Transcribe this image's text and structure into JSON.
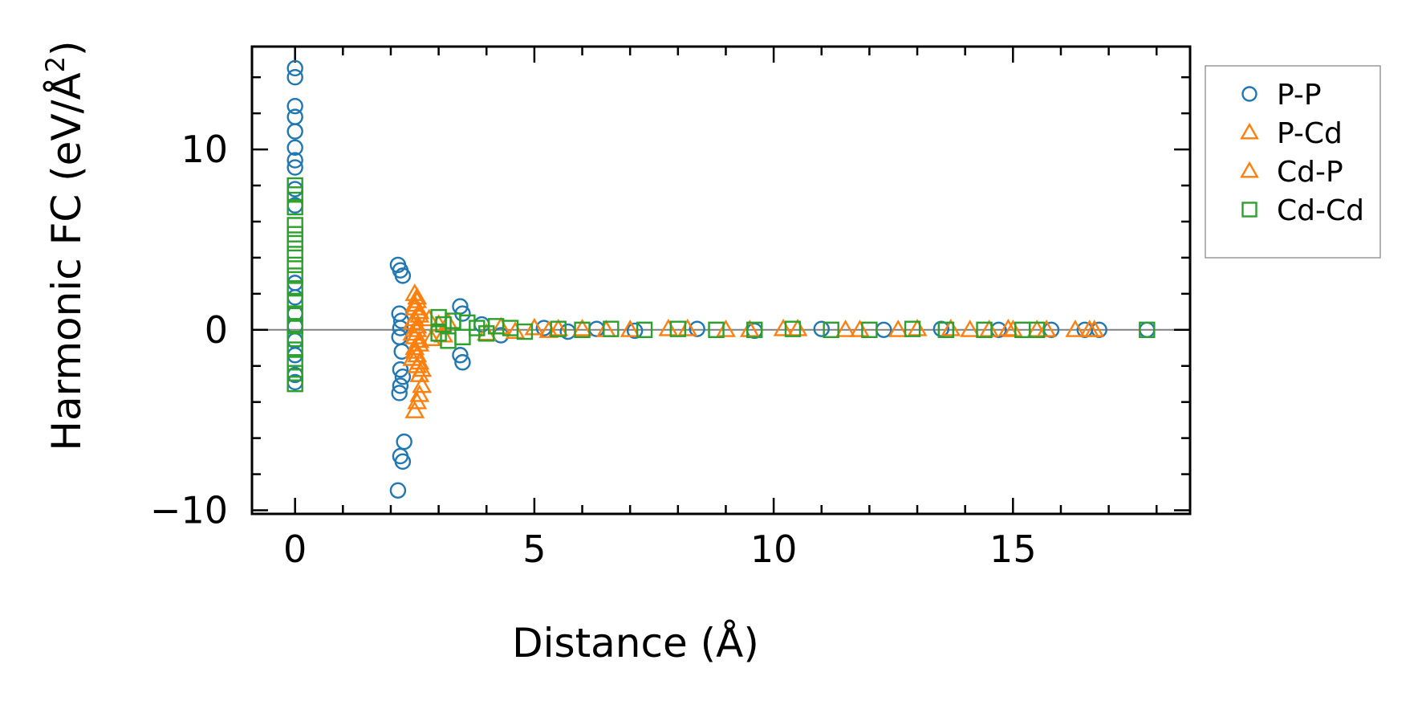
{
  "chart_data": {
    "type": "scatter",
    "title": "",
    "xlabel": "Distance (Å)",
    "ylabel_main": "Harmonic FC (eV/Å",
    "ylabel_sup": "2",
    "ylabel_close": ")",
    "xlim": [
      -0.9,
      18.7
    ],
    "ylim": [
      -10.2,
      15.7
    ],
    "x_ticks": [
      0,
      5,
      10,
      15
    ],
    "x_tick_labels": [
      "0",
      "5",
      "10",
      "15"
    ],
    "y_ticks": [
      -10,
      0,
      10
    ],
    "y_tick_labels": [
      "−10",
      "0",
      "10"
    ],
    "x_minor_step": 1,
    "y_minor_step": 2,
    "zero_line": 0,
    "grid": false,
    "legend_position": "outside-right-top",
    "series": [
      {
        "name": "P-P",
        "marker": "circle",
        "color": "#1f77b4",
        "points": [
          [
            0,
            14.5
          ],
          [
            0,
            14.0
          ],
          [
            0,
            12.4
          ],
          [
            0,
            11.8
          ],
          [
            0,
            11.0
          ],
          [
            0,
            10.1
          ],
          [
            0,
            9.4
          ],
          [
            0,
            9.0
          ],
          [
            0,
            7.8
          ],
          [
            0,
            6.9
          ],
          [
            0,
            2.6
          ],
          [
            0,
            1.8
          ],
          [
            0,
            0.9
          ],
          [
            0,
            0.2
          ],
          [
            0,
            -0.6
          ],
          [
            0,
            -1.4
          ],
          [
            0,
            -2.5
          ],
          [
            0,
            -2.9
          ],
          [
            2.15,
            3.6
          ],
          [
            2.2,
            3.3
          ],
          [
            2.25,
            3.0
          ],
          [
            2.18,
            0.9
          ],
          [
            2.22,
            0.5
          ],
          [
            2.2,
            0.1
          ],
          [
            2.18,
            -0.4
          ],
          [
            2.23,
            -1.2
          ],
          [
            2.2,
            -2.2
          ],
          [
            2.25,
            -2.6
          ],
          [
            2.2,
            -3.1
          ],
          [
            2.18,
            -3.5
          ],
          [
            2.28,
            -6.2
          ],
          [
            2.2,
            -7.0
          ],
          [
            2.25,
            -7.3
          ],
          [
            2.15,
            -8.9
          ],
          [
            3.45,
            1.3
          ],
          [
            3.5,
            0.9
          ],
          [
            3.45,
            -1.4
          ],
          [
            3.5,
            -1.8
          ],
          [
            3.9,
            0.3
          ],
          [
            4.3,
            -0.3
          ],
          [
            5.2,
            0.1
          ],
          [
            5.7,
            -0.1
          ],
          [
            6.3,
            0.05
          ],
          [
            7.1,
            -0.05
          ],
          [
            8.4,
            0.05
          ],
          [
            9.6,
            -0.05
          ],
          [
            11.0,
            0.05
          ],
          [
            12.3,
            0.0
          ],
          [
            13.5,
            0.05
          ],
          [
            14.7,
            0.0
          ],
          [
            15.8,
            0.0
          ],
          [
            16.5,
            0.0
          ],
          [
            16.8,
            0.0
          ],
          [
            17.8,
            0.0
          ]
        ]
      },
      {
        "name": "P-Cd",
        "marker": "triangle",
        "color": "#ff7f0e",
        "points": [
          [
            2.5,
            2.0
          ],
          [
            2.55,
            1.6
          ],
          [
            2.5,
            1.2
          ],
          [
            2.6,
            0.8
          ],
          [
            2.45,
            0.4
          ],
          [
            2.55,
            0.0
          ],
          [
            2.5,
            -0.4
          ],
          [
            2.6,
            -0.8
          ],
          [
            2.5,
            -1.2
          ],
          [
            2.45,
            -1.6
          ],
          [
            2.55,
            -2.0
          ],
          [
            2.6,
            -2.5
          ],
          [
            2.65,
            -3.1
          ],
          [
            2.6,
            -3.6
          ],
          [
            2.55,
            -4.0
          ],
          [
            2.5,
            -4.5
          ],
          [
            2.8,
            0.6
          ],
          [
            2.85,
            -0.5
          ],
          [
            3.0,
            0.3
          ],
          [
            3.1,
            -0.3
          ],
          [
            4.3,
            0.15
          ],
          [
            4.6,
            -0.1
          ],
          [
            5.0,
            0.1
          ],
          [
            5.3,
            -0.05
          ],
          [
            6.0,
            0.05
          ],
          [
            7.0,
            0.0
          ],
          [
            8.2,
            0.05
          ],
          [
            9.5,
            0.0
          ],
          [
            10.5,
            0.05
          ],
          [
            11.5,
            0.0
          ],
          [
            12.6,
            0.0
          ],
          [
            13.7,
            0.05
          ],
          [
            14.5,
            0.0
          ],
          [
            15.0,
            0.0
          ],
          [
            15.5,
            0.0
          ],
          [
            16.3,
            0.0
          ],
          [
            16.7,
            0.0
          ]
        ]
      },
      {
        "name": "Cd-P",
        "marker": "triangle",
        "color": "#ff7f0e",
        "points": [
          [
            2.55,
            1.8
          ],
          [
            2.5,
            1.4
          ],
          [
            2.6,
            1.0
          ],
          [
            2.5,
            0.6
          ],
          [
            2.55,
            0.2
          ],
          [
            2.45,
            -0.2
          ],
          [
            2.6,
            -0.6
          ],
          [
            2.5,
            -1.0
          ],
          [
            2.55,
            -1.4
          ],
          [
            2.6,
            -1.8
          ],
          [
            2.65,
            -2.2
          ],
          [
            3.2,
            0.4
          ],
          [
            4.0,
            -0.2
          ],
          [
            5.5,
            0.05
          ],
          [
            6.5,
            0.0
          ],
          [
            7.8,
            0.05
          ],
          [
            9.0,
            0.0
          ],
          [
            10.2,
            0.05
          ],
          [
            11.8,
            0.0
          ],
          [
            13.0,
            0.05
          ],
          [
            14.1,
            0.0
          ],
          [
            14.9,
            0.05
          ],
          [
            15.7,
            0.0
          ],
          [
            16.6,
            0.0
          ]
        ]
      },
      {
        "name": "Cd-Cd",
        "marker": "square",
        "color": "#2ca02c",
        "points": [
          [
            0,
            8.0
          ],
          [
            0,
            7.5
          ],
          [
            0,
            6.8
          ],
          [
            0,
            5.8
          ],
          [
            0,
            5.3
          ],
          [
            0,
            4.8
          ],
          [
            0,
            4.2
          ],
          [
            0,
            3.6
          ],
          [
            0,
            3.0
          ],
          [
            0,
            2.3
          ],
          [
            0,
            1.6
          ],
          [
            0,
            0.9
          ],
          [
            0,
            0.2
          ],
          [
            0,
            -0.5
          ],
          [
            0,
            -1.1
          ],
          [
            0,
            -1.8
          ],
          [
            0,
            -2.4
          ],
          [
            0,
            -3.0
          ],
          [
            3.0,
            0.7
          ],
          [
            3.1,
            0.3
          ],
          [
            3.0,
            -0.2
          ],
          [
            3.2,
            -0.6
          ],
          [
            3.3,
            0.5
          ],
          [
            3.5,
            -0.4
          ],
          [
            3.6,
            0.4
          ],
          [
            3.8,
            0.1
          ],
          [
            4.0,
            -0.2
          ],
          [
            4.2,
            0.2
          ],
          [
            4.5,
            0.1
          ],
          [
            4.8,
            -0.1
          ],
          [
            5.5,
            0.05
          ],
          [
            6.0,
            0.0
          ],
          [
            6.6,
            0.05
          ],
          [
            7.3,
            0.0
          ],
          [
            8.0,
            0.05
          ],
          [
            8.8,
            0.0
          ],
          [
            9.6,
            0.0
          ],
          [
            10.4,
            0.05
          ],
          [
            11.2,
            0.0
          ],
          [
            12.0,
            0.0
          ],
          [
            12.9,
            0.05
          ],
          [
            13.6,
            0.0
          ],
          [
            14.4,
            0.0
          ],
          [
            15.2,
            0.0
          ],
          [
            15.5,
            0.0
          ],
          [
            17.8,
            0.0
          ]
        ]
      }
    ]
  }
}
